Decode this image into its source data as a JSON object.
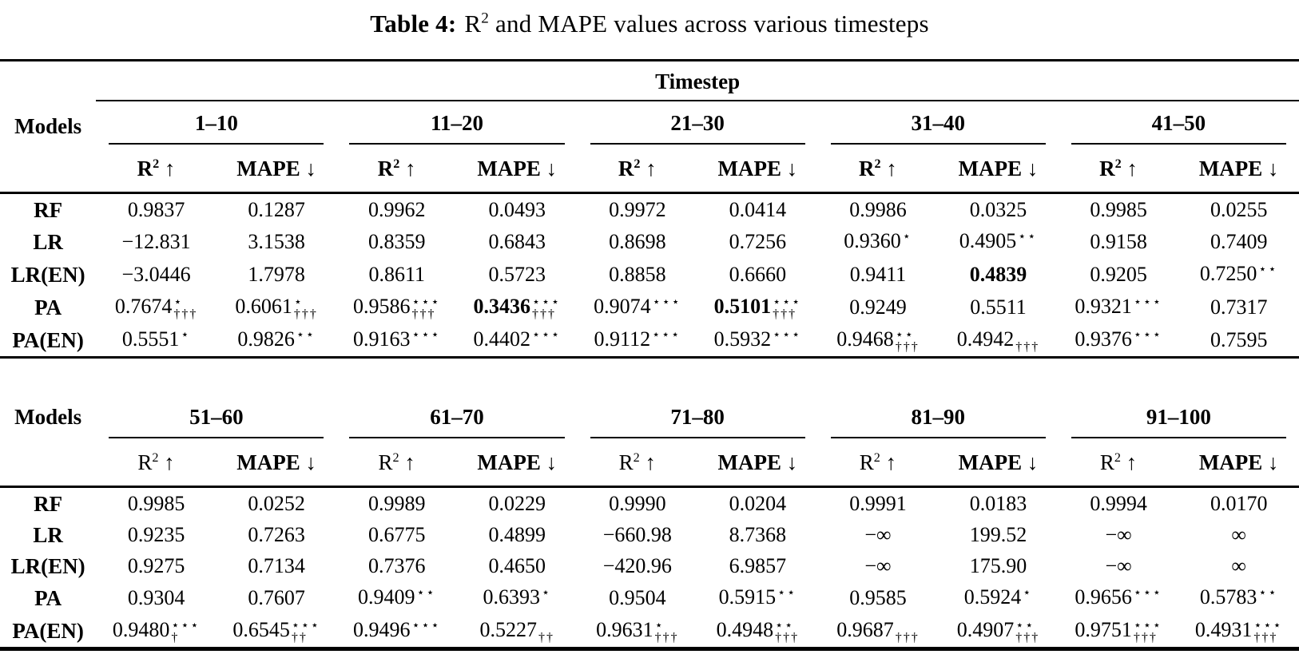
{
  "caption": {
    "label": "Table 4:",
    "before_sup": "R",
    "sup": "2",
    "after_sup": " and MAPE values across various timesteps"
  },
  "metric_headers": {
    "r2_base": "R",
    "r2_sup": "2",
    "r2_arrow": "↑",
    "mape_label": "MAPE",
    "mape_arrow": "↓"
  },
  "tables": [
    {
      "models_label": "Models",
      "timestep_header": "Timestep",
      "groups": [
        "1–10",
        "11–20",
        "21–30",
        "31–40",
        "41–50"
      ],
      "rows": [
        {
          "model": "RF",
          "cells": [
            "0.9837",
            "0.1287",
            "0.9962",
            "0.0493",
            "0.9972",
            "0.0414",
            "0.9986",
            "0.0325",
            "0.9985",
            "0.0255"
          ]
        },
        {
          "model": "LR",
          "cells": [
            "−12.831",
            "3.1538",
            "0.8359",
            "0.6843",
            "0.8698",
            "0.7256",
            {
              "v": "0.9360",
              "sup": "⋆"
            },
            {
              "v": "0.4905",
              "sup": "⋆⋆"
            },
            "0.9158",
            "0.7409"
          ]
        },
        {
          "model": "LR(EN)",
          "cells": [
            "−3.0446",
            "1.7978",
            "0.8611",
            "0.5723",
            "0.8858",
            "0.6660",
            "0.9411",
            {
              "v": "0.4839",
              "b": true
            },
            "0.9205",
            {
              "v": "0.7250",
              "sup": "⋆⋆"
            }
          ]
        },
        {
          "model": "PA",
          "cells": [
            {
              "v": "0.7674",
              "sup": "⋆",
              "sub": "†††"
            },
            {
              "v": "0.6061",
              "sup": "⋆",
              "sub": "†††"
            },
            {
              "v": "0.9586",
              "sup": "⋆⋆⋆",
              "sub": "†††"
            },
            {
              "v": "0.3436",
              "sup": "⋆⋆⋆",
              "sub": "†††",
              "b": true
            },
            {
              "v": "0.9074",
              "sup": "⋆⋆⋆"
            },
            {
              "v": "0.5101",
              "sup": "⋆⋆⋆",
              "sub": "†††",
              "b": true
            },
            "0.9249",
            "0.5511",
            {
              "v": "0.9321",
              "sup": "⋆⋆⋆"
            },
            "0.7317"
          ]
        },
        {
          "model": "PA(EN)",
          "cells": [
            {
              "v": "0.5551",
              "sup": "⋆"
            },
            {
              "v": "0.9826",
              "sup": "⋆⋆"
            },
            {
              "v": "0.9163",
              "sup": "⋆⋆⋆"
            },
            {
              "v": "0.4402",
              "sup": "⋆⋆⋆"
            },
            {
              "v": "0.9112",
              "sup": "⋆⋆⋆"
            },
            {
              "v": "0.5932",
              "sup": "⋆⋆⋆"
            },
            {
              "v": "0.9468",
              "sup": "⋆⋆",
              "sub": "†††"
            },
            {
              "v": "0.4942",
              "sub": "†††"
            },
            {
              "v": "0.9376",
              "sup": "⋆⋆⋆"
            },
            "0.7595"
          ]
        }
      ]
    },
    {
      "models_label": "Models",
      "groups": [
        "51–60",
        "61–70",
        "71–80",
        "81–90",
        "91–100"
      ],
      "rows": [
        {
          "model": "RF",
          "cells": [
            "0.9985",
            "0.0252",
            "0.9989",
            "0.0229",
            "0.9990",
            "0.0204",
            "0.9991",
            "0.0183",
            "0.9994",
            "0.0170"
          ]
        },
        {
          "model": "LR",
          "cells": [
            "0.9235",
            "0.7263",
            "0.6775",
            "0.4899",
            "−660.98",
            "8.7368",
            "−∞",
            "199.52",
            "−∞",
            "∞"
          ]
        },
        {
          "model": "LR(EN)",
          "cells": [
            "0.9275",
            "0.7134",
            "0.7376",
            "0.4650",
            "−420.96",
            "6.9857",
            "−∞",
            "175.90",
            "−∞",
            "∞"
          ]
        },
        {
          "model": "PA",
          "cells": [
            "0.9304",
            "0.7607",
            {
              "v": "0.9409",
              "sup": "⋆⋆"
            },
            {
              "v": "0.6393",
              "sup": "⋆"
            },
            "0.9504",
            {
              "v": "0.5915",
              "sup": "⋆⋆"
            },
            "0.9585",
            {
              "v": "0.5924",
              "sup": "⋆"
            },
            {
              "v": "0.9656",
              "sup": "⋆⋆⋆"
            },
            {
              "v": "0.5783",
              "sup": "⋆⋆"
            }
          ]
        },
        {
          "model": "PA(EN)",
          "cells": [
            {
              "v": "0.9480",
              "sup": "⋆⋆⋆",
              "sub": "†"
            },
            {
              "v": "0.6545",
              "sup": "⋆⋆⋆",
              "sub": "††"
            },
            {
              "v": "0.9496",
              "sup": "⋆⋆⋆"
            },
            {
              "v": "0.5227",
              "sub": "††"
            },
            {
              "v": "0.9631",
              "sup": "⋆",
              "sub": "†††"
            },
            {
              "v": "0.4948",
              "sup": "⋆⋆",
              "sub": "†††"
            },
            {
              "v": "0.9687",
              "sub": "†††"
            },
            {
              "v": "0.4907",
              "sup": "⋆⋆",
              "sub": "†††"
            },
            {
              "v": "0.9751",
              "sup": "⋆⋆⋆",
              "sub": "†††"
            },
            {
              "v": "0.4931",
              "sup": "⋆⋆⋆",
              "sub": "†††"
            }
          ]
        }
      ]
    }
  ]
}
